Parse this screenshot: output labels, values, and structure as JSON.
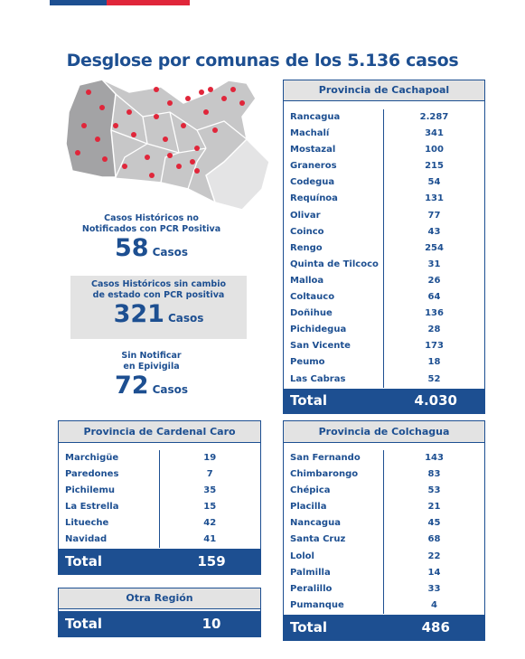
{
  "header": {
    "title": "Desglose por comunas de los 5.136 casos"
  },
  "stats": [
    {
      "label_lines": [
        "Casos Históricos no",
        "Notificados con PCR Positiva"
      ],
      "number": "58",
      "unit": "Casos"
    },
    {
      "label_lines": [
        "Casos Históricos sin cambio",
        "de estado con PCR positiva"
      ],
      "number": "321",
      "unit": "Casos"
    },
    {
      "label_lines": [
        "Sin Notificar",
        "en Epivigila"
      ],
      "number": "72",
      "unit": "Casos"
    }
  ],
  "tables": [
    {
      "title": "Provincia de Cachapoal",
      "rows": [
        [
          "Rancagua",
          "2.287"
        ],
        [
          "Machalí",
          "341"
        ],
        [
          "Mostazal",
          "100"
        ],
        [
          "Graneros",
          "215"
        ],
        [
          "Codegua",
          "54"
        ],
        [
          "Requínoa",
          "131"
        ],
        [
          "Olivar",
          "77"
        ],
        [
          "Coinco",
          "43"
        ],
        [
          "Rengo",
          "254"
        ],
        [
          "Quinta de Tilcoco",
          "31"
        ],
        [
          "Malloa",
          "26"
        ],
        [
          "Coltauco",
          "64"
        ],
        [
          "Doñihue",
          "136"
        ],
        [
          "Pichidegua",
          "28"
        ],
        [
          "San Vicente",
          "173"
        ],
        [
          "Peumo",
          "18"
        ],
        [
          "Las Cabras",
          "52"
        ]
      ],
      "total_label": "Total",
      "total": "4.030"
    },
    {
      "title": "Provincia de Cardenal Caro",
      "rows": [
        [
          "Marchigüe",
          "19"
        ],
        [
          "Paredones",
          "7"
        ],
        [
          "Pichilemu",
          "35"
        ],
        [
          "La Estrella",
          "15"
        ],
        [
          "Litueche",
          "42"
        ],
        [
          "Navidad",
          "41"
        ]
      ],
      "total_label": "Total",
      "total": "159"
    },
    {
      "title": "Otra Región",
      "rows": [],
      "total_label": "Total",
      "total": "10"
    },
    {
      "title": "Provincia de Colchagua",
      "rows": [
        [
          "San Fernando",
          "143"
        ],
        [
          "Chimbarongo",
          "83"
        ],
        [
          "Chépica",
          "53"
        ],
        [
          "Placilla",
          "21"
        ],
        [
          "Nancagua",
          "45"
        ],
        [
          "Santa Cruz",
          "68"
        ],
        [
          "Lolol",
          "22"
        ],
        [
          "Palmilla",
          "14"
        ],
        [
          "Peralillo",
          "33"
        ],
        [
          "Pumanque",
          "4"
        ]
      ],
      "total_label": "Total",
      "total": "486"
    }
  ]
}
